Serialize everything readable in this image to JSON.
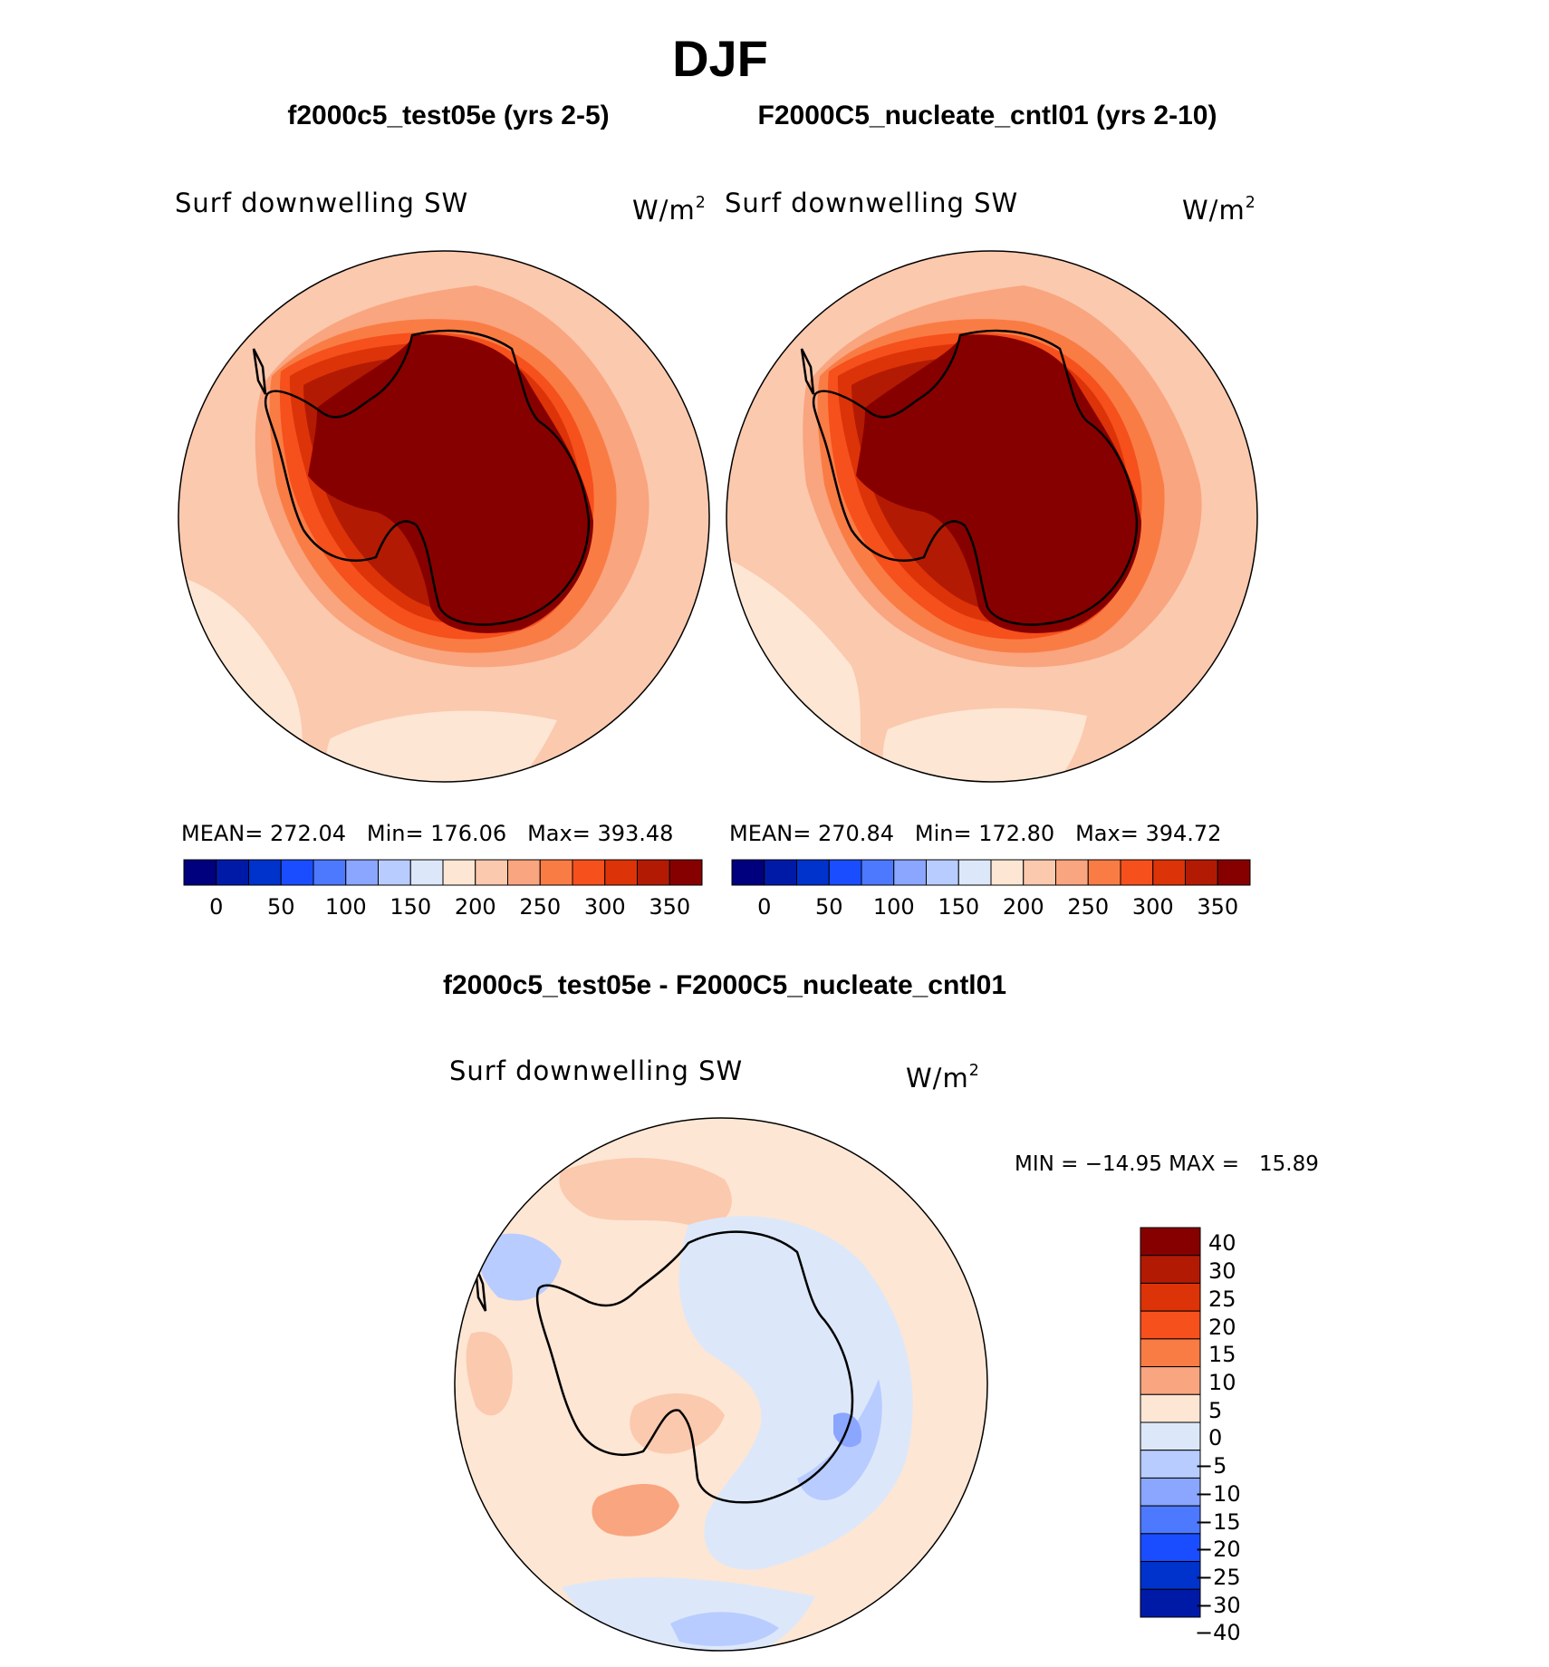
{
  "page_title": "DJF",
  "panels": [
    {
      "case_title": "f2000c5_test05e (yrs 2-5)",
      "variable": "Surf downwelling SW",
      "units_base": "W/m",
      "units_exp": "2",
      "stats": {
        "mean_label": "MEAN=",
        "mean": "272.04",
        "min_label": "Min=",
        "min": "176.06",
        "max_label": "Max=",
        "max": "393.48"
      }
    },
    {
      "case_title": "F2000C5_nucleate_cntl01 (yrs 2-10)",
      "variable": "Surf downwelling SW",
      "units_base": "W/m",
      "units_exp": "2",
      "stats": {
        "mean_label": "MEAN=",
        "mean": "270.84",
        "min_label": "Min=",
        "min": "172.80",
        "max_label": "Max=",
        "max": "394.72"
      }
    }
  ],
  "diff_panel": {
    "title": "f2000c5_test05e - F2000C5_nucleate_cntl01",
    "variable": "Surf downwelling SW",
    "units_base": "W/m",
    "units_exp": "2",
    "minmax": "MIN = −14.95 MAX =   15.89"
  },
  "colorbar_abs": {
    "colors": [
      "#00007f",
      "#001aa8",
      "#0033cc",
      "#1a4dff",
      "#4d79ff",
      "#8aa6ff",
      "#b8ccff",
      "#dce8fa",
      "#fde6d4",
      "#fbc9ae",
      "#f9a57f",
      "#fa7c45",
      "#f6501c",
      "#dd3308",
      "#b21a04",
      "#870000"
    ],
    "tick_labels": [
      "0",
      "50",
      "100",
      "150",
      "200",
      "250",
      "300",
      "350"
    ]
  },
  "colorbar_diff": {
    "colors": [
      "#870000",
      "#b21a04",
      "#dd3308",
      "#f6501c",
      "#fa7c45",
      "#f9a57f",
      "#fde6d4",
      "#dce8fa",
      "#b8ccff",
      "#8aa6ff",
      "#4d79ff",
      "#1a4dff",
      "#0033cc",
      "#001aa8"
    ],
    "tick_labels": [
      "40",
      "30",
      "25",
      "20",
      "15",
      "10",
      "5",
      "0",
      "−5",
      "−10",
      "−15",
      "−20",
      "−25",
      "−30",
      "−40"
    ]
  },
  "chart_data": [
    {
      "type": "heatmap",
      "title": "f2000c5_test05e (yrs 2-5)",
      "variable": "Surf downwelling SW",
      "units": "W/m2",
      "projection": "south polar stereographic",
      "stats": {
        "mean": 272.04,
        "min": 176.06,
        "max": 393.48
      },
      "levels": [
        0,
        25,
        50,
        75,
        100,
        125,
        150,
        175,
        200,
        225,
        250,
        275,
        300,
        325,
        350
      ]
    },
    {
      "type": "heatmap",
      "title": "F2000C5_nucleate_cntl01 (yrs 2-10)",
      "variable": "Surf downwelling SW",
      "units": "W/m2",
      "projection": "south polar stereographic",
      "stats": {
        "mean": 270.84,
        "min": 172.8,
        "max": 394.72
      },
      "levels": [
        0,
        25,
        50,
        75,
        100,
        125,
        150,
        175,
        200,
        225,
        250,
        275,
        300,
        325,
        350
      ]
    },
    {
      "type": "heatmap",
      "title": "f2000c5_test05e - F2000C5_nucleate_cntl01",
      "variable": "Surf downwelling SW",
      "units": "W/m2",
      "projection": "south polar stereographic",
      "stats": {
        "min": -14.95,
        "max": 15.89
      },
      "levels": [
        -40,
        -30,
        -25,
        -20,
        -15,
        -10,
        -5,
        0,
        5,
        10,
        15,
        20,
        25,
        30,
        40
      ]
    }
  ]
}
